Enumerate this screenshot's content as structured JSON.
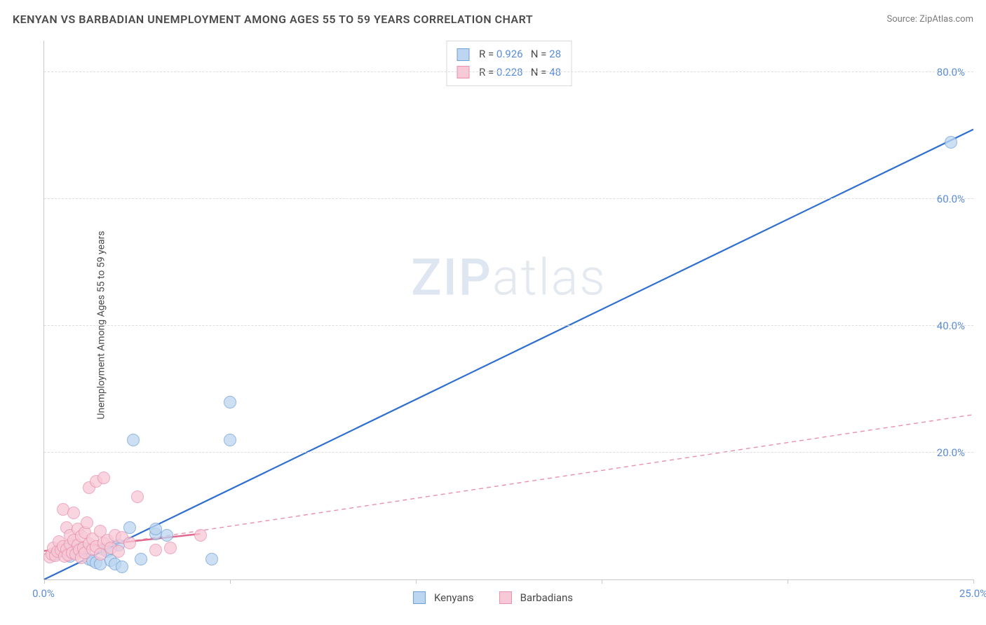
{
  "header": {
    "title": "KENYAN VS BARBADIAN UNEMPLOYMENT AMONG AGES 55 TO 59 YEARS CORRELATION CHART",
    "source": "Source: ZipAtlas.com"
  },
  "chart": {
    "type": "scatter",
    "y_axis_label": "Unemployment Among Ages 55 to 59 years",
    "watermark": "ZIPatlas",
    "xlim": [
      0,
      25
    ],
    "ylim": [
      0,
      85
    ],
    "x_ticks": [
      0,
      5,
      10,
      15,
      20,
      25
    ],
    "x_tick_labels": {
      "0": "0.0%",
      "25": "25.0%"
    },
    "y_ticks": [
      20,
      40,
      60,
      80
    ],
    "y_tick_labels": {
      "20": "20.0%",
      "40": "40.0%",
      "60": "60.0%",
      "80": "80.0%"
    },
    "grid_color": "#dddddd",
    "axis_color": "#c8c8c8",
    "tick_label_color": "#5b8dd6",
    "background_color": "#ffffff",
    "marker_radius": 9,
    "marker_stroke_width": 1.2,
    "series": [
      {
        "name": "Kenyans",
        "fill": "#bcd5f0",
        "stroke": "#6f9fd8",
        "stats": {
          "R": "0.926",
          "N": "28"
        },
        "trend": {
          "x1": 0,
          "y1": 0,
          "x2": 25,
          "y2": 71,
          "stroke": "#2f6fd0",
          "width": 2.2,
          "dash": "none"
        },
        "points": [
          [
            0.3,
            4.0
          ],
          [
            0.5,
            4.5
          ],
          [
            0.6,
            5.0
          ],
          [
            0.7,
            3.6
          ],
          [
            0.8,
            4.2
          ],
          [
            0.9,
            4.6
          ],
          [
            1.0,
            5.0
          ],
          [
            1.1,
            4.8
          ],
          [
            1.2,
            3.2
          ],
          [
            1.3,
            3.0
          ],
          [
            1.4,
            2.6
          ],
          [
            1.5,
            2.4
          ],
          [
            1.6,
            4.8
          ],
          [
            1.7,
            4.4
          ],
          [
            1.8,
            3.0
          ],
          [
            1.9,
            2.4
          ],
          [
            2.0,
            5.4
          ],
          [
            2.1,
            2.0
          ],
          [
            2.3,
            8.2
          ],
          [
            2.4,
            22.0
          ],
          [
            2.6,
            3.2
          ],
          [
            3.0,
            7.2
          ],
          [
            3.0,
            8.0
          ],
          [
            3.3,
            7.0
          ],
          [
            4.5,
            3.2
          ],
          [
            5.0,
            22.0
          ],
          [
            5.0,
            28.0
          ],
          [
            24.4,
            69.0
          ]
        ]
      },
      {
        "name": "Barbadians",
        "fill": "#f7c8d6",
        "stroke": "#e890ad",
        "stats": {
          "R": "0.228",
          "N": "48"
        },
        "trend": {
          "x1": 0,
          "y1": 4,
          "x2": 25,
          "y2": 26,
          "stroke": "#e890ad",
          "width": 1.4,
          "dash": "6,5"
        },
        "trend_solid": {
          "x1": 0,
          "y1": 4.5,
          "x2": 4.2,
          "y2": 7.2,
          "stroke": "#e26a8f",
          "width": 2.5
        },
        "points": [
          [
            0.15,
            3.5
          ],
          [
            0.2,
            4.0
          ],
          [
            0.25,
            5.0
          ],
          [
            0.3,
            3.8
          ],
          [
            0.35,
            4.4
          ],
          [
            0.4,
            6.0
          ],
          [
            0.45,
            4.6
          ],
          [
            0.5,
            5.2
          ],
          [
            0.5,
            11.0
          ],
          [
            0.55,
            3.6
          ],
          [
            0.6,
            4.8
          ],
          [
            0.6,
            8.2
          ],
          [
            0.65,
            3.9
          ],
          [
            0.7,
            5.5
          ],
          [
            0.7,
            7.0
          ],
          [
            0.75,
            4.2
          ],
          [
            0.8,
            10.5
          ],
          [
            0.8,
            6.2
          ],
          [
            0.85,
            4.0
          ],
          [
            0.9,
            5.4
          ],
          [
            0.9,
            8.0
          ],
          [
            0.95,
            4.6
          ],
          [
            1.0,
            6.8
          ],
          [
            1.0,
            3.4
          ],
          [
            1.05,
            5.0
          ],
          [
            1.1,
            7.4
          ],
          [
            1.1,
            4.2
          ],
          [
            1.15,
            9.0
          ],
          [
            1.2,
            5.6
          ],
          [
            1.2,
            14.5
          ],
          [
            1.3,
            4.8
          ],
          [
            1.3,
            6.4
          ],
          [
            1.4,
            5.2
          ],
          [
            1.4,
            15.5
          ],
          [
            1.5,
            4.0
          ],
          [
            1.5,
            7.6
          ],
          [
            1.6,
            5.8
          ],
          [
            1.6,
            16.0
          ],
          [
            1.7,
            6.2
          ],
          [
            1.8,
            5.0
          ],
          [
            1.9,
            7.0
          ],
          [
            2.0,
            4.4
          ],
          [
            2.1,
            6.6
          ],
          [
            2.3,
            5.8
          ],
          [
            2.5,
            13.0
          ],
          [
            3.0,
            4.6
          ],
          [
            3.4,
            5.0
          ],
          [
            4.2,
            7.0
          ]
        ]
      }
    ],
    "legend": {
      "items": [
        "Kenyans",
        "Barbadians"
      ]
    },
    "stats_box": {
      "R_label": "R =",
      "N_label": "N ="
    }
  }
}
